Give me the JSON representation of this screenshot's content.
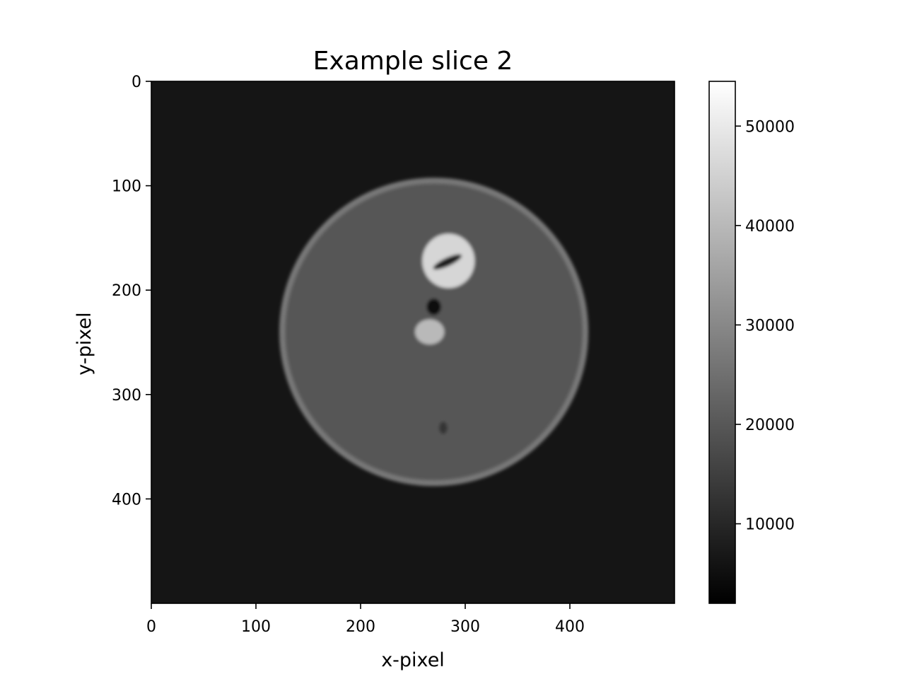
{
  "chart_data": {
    "type": "heatmap",
    "title": "Example slice 2",
    "xlabel": "x-pixel",
    "ylabel": "y-pixel",
    "xlim": [
      0,
      500
    ],
    "ylim": [
      500,
      0
    ],
    "x_ticks": [
      0,
      100,
      200,
      300,
      400
    ],
    "y_ticks": [
      0,
      100,
      200,
      300,
      400
    ],
    "colormap": "gray",
    "background_color": "#151515",
    "colorbar": {
      "range": [
        2000,
        54500
      ],
      "ticks": [
        10000,
        20000,
        30000,
        40000,
        50000
      ]
    },
    "image_features": [
      {
        "kind": "disc",
        "cx": 270,
        "cy": 240,
        "rx": 145,
        "ry": 145,
        "intensity": 20000,
        "rim_intensity": 27000
      },
      {
        "kind": "bright-ring",
        "cx": 284,
        "cy": 172,
        "rx": 25,
        "ry": 26,
        "intensity": 46000
      },
      {
        "kind": "dark-slot",
        "cx": 283,
        "cy": 173,
        "rx": 15,
        "ry": 4,
        "intensity": 8000,
        "angle": -25
      },
      {
        "kind": "bright-spot",
        "cx": 266,
        "cy": 240,
        "rx": 14,
        "ry": 12,
        "intensity": 40000
      },
      {
        "kind": "dark-spot",
        "cx": 270,
        "cy": 216,
        "rx": 7,
        "ry": 8,
        "intensity": 4000
      },
      {
        "kind": "dark-spot",
        "cx": 279,
        "cy": 332,
        "rx": 4,
        "ry": 6,
        "intensity": 13000
      }
    ]
  }
}
